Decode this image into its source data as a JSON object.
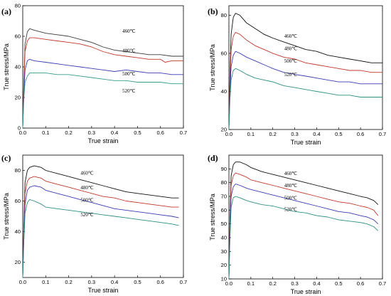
{
  "chart_data": [
    {
      "panel": "(a)",
      "type": "line",
      "xlabel": "True strain",
      "ylabel": "True stress/MPa",
      "xlim": [
        0,
        0.7
      ],
      "ylim": [
        0,
        80
      ],
      "xticks": [
        "0.0",
        "0.1",
        "0.2",
        "0.3",
        "0.4",
        "0.5",
        "0.6",
        "0.7"
      ],
      "yticks": [
        "0",
        "20",
        "40",
        "60",
        "80"
      ],
      "series": [
        {
          "name": "460℃",
          "color": "#3a3a3a",
          "x": [
            0,
            0.005,
            0.01,
            0.02,
            0.03,
            0.05,
            0.1,
            0.15,
            0.2,
            0.25,
            0.3,
            0.35,
            0.4,
            0.45,
            0.5,
            0.55,
            0.6,
            0.65,
            0.7
          ],
          "y": [
            0,
            30,
            55,
            63,
            65,
            64,
            62,
            61,
            60,
            58,
            56,
            53,
            51,
            50,
            49,
            48,
            48,
            47,
            47
          ]
        },
        {
          "name": "480℃",
          "color": "#c0392b",
          "x": [
            0,
            0.005,
            0.01,
            0.02,
            0.03,
            0.05,
            0.1,
            0.15,
            0.2,
            0.25,
            0.3,
            0.35,
            0.4,
            0.45,
            0.5,
            0.55,
            0.6,
            0.62,
            0.65,
            0.7
          ],
          "y": [
            0,
            28,
            50,
            57,
            59,
            59,
            58,
            57,
            56,
            55,
            53,
            50,
            48,
            47,
            46,
            45,
            45,
            43,
            44,
            44
          ]
        },
        {
          "name": "500℃",
          "color": "#3b3bb0",
          "x": [
            0,
            0.005,
            0.01,
            0.02,
            0.03,
            0.05,
            0.1,
            0.15,
            0.2,
            0.25,
            0.3,
            0.35,
            0.4,
            0.45,
            0.5,
            0.55,
            0.6,
            0.65,
            0.7
          ],
          "y": [
            0,
            24,
            38,
            44,
            45,
            44,
            43,
            42,
            41,
            40,
            39,
            38,
            37,
            38,
            37,
            36,
            36,
            35,
            35
          ]
        },
        {
          "name": "520℃",
          "color": "#3a9a8a",
          "x": [
            0,
            0.005,
            0.01,
            0.02,
            0.03,
            0.05,
            0.1,
            0.15,
            0.2,
            0.25,
            0.3,
            0.35,
            0.4,
            0.45,
            0.5,
            0.55,
            0.6,
            0.65,
            0.7
          ],
          "y": [
            0,
            20,
            30,
            34,
            36,
            36,
            36,
            35,
            35,
            34,
            33,
            32,
            31,
            31,
            30,
            30,
            30,
            29,
            29
          ]
        }
      ]
    },
    {
      "panel": "(b)",
      "type": "line",
      "xlabel": "True strain",
      "ylabel": "True stress/MPa",
      "xlim": [
        0,
        0.7
      ],
      "ylim": [
        20,
        85
      ],
      "xticks": [
        "0.0",
        "0.1",
        "0.2",
        "0.3",
        "0.4",
        "0.5",
        "0.6",
        "0.7"
      ],
      "yticks": [
        "20",
        "40",
        "60",
        "80"
      ],
      "series": [
        {
          "name": "460℃",
          "color": "#111111",
          "x": [
            0,
            0.005,
            0.01,
            0.02,
            0.03,
            0.05,
            0.08,
            0.12,
            0.16,
            0.2,
            0.25,
            0.3,
            0.35,
            0.4,
            0.45,
            0.5,
            0.55,
            0.6,
            0.65,
            0.7
          ],
          "y": [
            20,
            50,
            70,
            79,
            81,
            80,
            76,
            73,
            70,
            68,
            66,
            64,
            62,
            61,
            59,
            58,
            57,
            56,
            55,
            55
          ]
        },
        {
          "name": "480℃",
          "color": "#c0392b",
          "x": [
            0,
            0.005,
            0.01,
            0.02,
            0.03,
            0.05,
            0.08,
            0.12,
            0.16,
            0.2,
            0.25,
            0.3,
            0.35,
            0.4,
            0.45,
            0.5,
            0.55,
            0.6,
            0.65,
            0.7
          ],
          "y": [
            20,
            45,
            62,
            69,
            71,
            70,
            67,
            64,
            62,
            60,
            58,
            57,
            55,
            54,
            53,
            52,
            51,
            51,
            50,
            50
          ]
        },
        {
          "name": "500℃",
          "color": "#3b3bb0",
          "x": [
            0,
            0.005,
            0.01,
            0.02,
            0.03,
            0.05,
            0.08,
            0.12,
            0.16,
            0.2,
            0.25,
            0.3,
            0.35,
            0.4,
            0.45,
            0.5,
            0.55,
            0.6,
            0.65,
            0.7
          ],
          "y": [
            20,
            40,
            53,
            59,
            61,
            60,
            58,
            56,
            54,
            52,
            50,
            49,
            48,
            47,
            46,
            45,
            45,
            44,
            44,
            44
          ]
        },
        {
          "name": "520℃",
          "color": "#2f8f80",
          "x": [
            0,
            0.005,
            0.01,
            0.02,
            0.03,
            0.05,
            0.08,
            0.12,
            0.16,
            0.2,
            0.25,
            0.3,
            0.35,
            0.4,
            0.45,
            0.5,
            0.55,
            0.6,
            0.65,
            0.7
          ],
          "y": [
            20,
            36,
            46,
            51,
            52,
            51,
            49,
            47,
            46,
            45,
            43,
            42,
            41,
            40,
            39,
            38,
            38,
            37,
            37,
            37
          ]
        }
      ]
    },
    {
      "panel": "(c)",
      "type": "line",
      "xlabel": "True strain",
      "ylabel": "True stress/MPa",
      "xlim": [
        0,
        0.7
      ],
      "ylim": [
        10,
        90
      ],
      "xticks": [
        "0.0",
        "0.1",
        "0.2",
        "0.3",
        "0.4",
        "0.5",
        "0.6",
        "0.7"
      ],
      "yticks": [
        "20",
        "40",
        "60",
        "80"
      ],
      "series": [
        {
          "name": "460℃",
          "color": "#111111",
          "x": [
            0,
            0.005,
            0.01,
            0.02,
            0.03,
            0.05,
            0.08,
            0.1,
            0.15,
            0.2,
            0.25,
            0.3,
            0.35,
            0.4,
            0.45,
            0.5,
            0.55,
            0.6,
            0.65,
            0.68
          ],
          "y": [
            10,
            45,
            72,
            80,
            82,
            83,
            82,
            80,
            78,
            76,
            74,
            72,
            70,
            68,
            66,
            65,
            64,
            63,
            62,
            62
          ]
        },
        {
          "name": "480℃",
          "color": "#c0392b",
          "x": [
            0,
            0.005,
            0.01,
            0.02,
            0.03,
            0.05,
            0.08,
            0.1,
            0.15,
            0.2,
            0.25,
            0.3,
            0.35,
            0.4,
            0.45,
            0.5,
            0.55,
            0.6,
            0.65,
            0.68
          ],
          "y": [
            10,
            42,
            65,
            73,
            75,
            76,
            75,
            73,
            71,
            69,
            67,
            65,
            63,
            62,
            60,
            59,
            58,
            57,
            56,
            56
          ]
        },
        {
          "name": "500℃",
          "color": "#3b3bb0",
          "x": [
            0,
            0.005,
            0.01,
            0.02,
            0.03,
            0.05,
            0.08,
            0.1,
            0.15,
            0.2,
            0.25,
            0.3,
            0.35,
            0.4,
            0.45,
            0.5,
            0.55,
            0.6,
            0.65,
            0.68
          ],
          "y": [
            10,
            38,
            58,
            67,
            69,
            70,
            69,
            67,
            65,
            63,
            61,
            59,
            57,
            55,
            54,
            53,
            52,
            51,
            50,
            49
          ]
        },
        {
          "name": "520℃",
          "color": "#2f8f80",
          "x": [
            0,
            0.005,
            0.01,
            0.02,
            0.03,
            0.05,
            0.08,
            0.1,
            0.15,
            0.2,
            0.25,
            0.3,
            0.35,
            0.4,
            0.45,
            0.5,
            0.55,
            0.6,
            0.65,
            0.68
          ],
          "y": [
            10,
            34,
            52,
            59,
            61,
            60,
            58,
            56,
            55,
            54,
            53,
            52,
            51,
            50,
            49,
            48,
            47,
            46,
            45,
            44
          ]
        }
      ]
    },
    {
      "panel": "(d)",
      "type": "line",
      "xlabel": "True strain",
      "ylabel": "True stress/MPa",
      "xlim": [
        0,
        0.7
      ],
      "ylim": [
        10,
        100
      ],
      "xticks": [
        "0.0",
        "0.1",
        "0.2",
        "0.3",
        "0.4",
        "0.5",
        "0.6",
        "0.7"
      ],
      "yticks": [
        "10",
        "20",
        "30",
        "40",
        "50",
        "60",
        "70",
        "80",
        "90"
      ],
      "series": [
        {
          "name": "460℃",
          "color": "#111111",
          "x": [
            0,
            0.005,
            0.01,
            0.02,
            0.03,
            0.05,
            0.08,
            0.1,
            0.15,
            0.2,
            0.25,
            0.3,
            0.35,
            0.4,
            0.45,
            0.5,
            0.55,
            0.6,
            0.63,
            0.66,
            0.68
          ],
          "y": [
            10,
            55,
            85,
            93,
            95,
            95,
            93,
            91,
            88,
            86,
            84,
            82,
            80,
            78,
            76,
            74,
            72,
            70,
            69,
            67,
            64
          ]
        },
        {
          "name": "480℃",
          "color": "#c0392b",
          "x": [
            0,
            0.005,
            0.01,
            0.02,
            0.03,
            0.05,
            0.08,
            0.1,
            0.15,
            0.2,
            0.25,
            0.3,
            0.35,
            0.4,
            0.45,
            0.5,
            0.55,
            0.6,
            0.63,
            0.66,
            0.68
          ],
          "y": [
            10,
            50,
            78,
            85,
            87,
            86,
            84,
            82,
            80,
            78,
            76,
            74,
            72,
            70,
            68,
            66,
            65,
            63,
            62,
            60,
            56
          ]
        },
        {
          "name": "500℃",
          "color": "#3b3bb0",
          "x": [
            0,
            0.005,
            0.01,
            0.02,
            0.03,
            0.05,
            0.08,
            0.1,
            0.15,
            0.2,
            0.25,
            0.3,
            0.35,
            0.4,
            0.45,
            0.5,
            0.55,
            0.6,
            0.63,
            0.66,
            0.68
          ],
          "y": [
            10,
            45,
            70,
            77,
            79,
            78,
            76,
            75,
            73,
            71,
            69,
            67,
            65,
            63,
            61,
            59,
            58,
            56,
            55,
            53,
            50
          ]
        },
        {
          "name": "520℃",
          "color": "#2f8f80",
          "x": [
            0,
            0.005,
            0.01,
            0.02,
            0.03,
            0.05,
            0.08,
            0.1,
            0.15,
            0.2,
            0.25,
            0.3,
            0.35,
            0.4,
            0.45,
            0.5,
            0.55,
            0.6,
            0.63,
            0.66,
            0.68
          ],
          "y": [
            10,
            40,
            62,
            69,
            70,
            69,
            67,
            66,
            64,
            63,
            61,
            59,
            58,
            56,
            55,
            53,
            52,
            51,
            50,
            48,
            45
          ]
        }
      ]
    }
  ]
}
